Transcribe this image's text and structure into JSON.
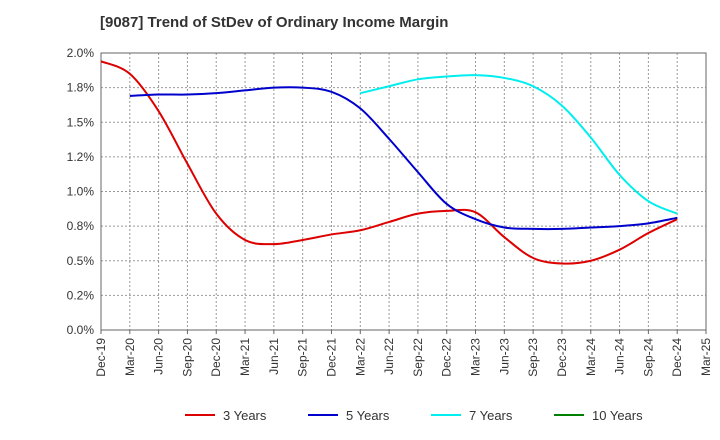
{
  "chart_data": {
    "type": "line",
    "title": "[9087]  Trend of StDev of Ordinary Income Margin",
    "xlabel": "",
    "ylabel": "",
    "ylim": [
      0.0,
      2.0
    ],
    "y_ticks": [
      "0.0%",
      "0.2%",
      "0.5%",
      "0.8%",
      "1.0%",
      "1.2%",
      "1.5%",
      "1.8%",
      "2.0%"
    ],
    "categories": [
      "Dec-19",
      "Mar-20",
      "Jun-20",
      "Sep-20",
      "Dec-20",
      "Mar-21",
      "Jun-21",
      "Sep-21",
      "Dec-21",
      "Mar-22",
      "Jun-22",
      "Sep-22",
      "Dec-22",
      "Mar-23",
      "Jun-23",
      "Sep-23",
      "Dec-23",
      "Mar-24",
      "Jun-24",
      "Sep-24",
      "Dec-24",
      "Mar-25"
    ],
    "grid": true,
    "legend_position": "bottom",
    "series": [
      {
        "name": "3 Years",
        "color": "#dd0000",
        "values": [
          1.94,
          1.85,
          1.58,
          1.2,
          0.84,
          0.65,
          0.62,
          0.65,
          0.69,
          0.72,
          0.78,
          0.84,
          0.86,
          0.85,
          0.67,
          0.52,
          0.48,
          0.5,
          0.58,
          0.7,
          0.8,
          null
        ]
      },
      {
        "name": "5 Years",
        "color": "#0000cc",
        "values": [
          null,
          1.69,
          1.7,
          1.7,
          1.71,
          1.73,
          1.75,
          1.75,
          1.72,
          1.6,
          1.38,
          1.14,
          0.91,
          0.8,
          0.74,
          0.73,
          0.73,
          0.74,
          0.75,
          0.77,
          0.81,
          null
        ]
      },
      {
        "name": "7 Years",
        "color": "#00eeee",
        "values": [
          null,
          null,
          null,
          null,
          null,
          null,
          null,
          null,
          null,
          1.71,
          1.76,
          1.81,
          1.83,
          1.84,
          1.82,
          1.76,
          1.62,
          1.39,
          1.12,
          0.93,
          0.84,
          null
        ]
      },
      {
        "name": "10 Years",
        "color": "#008000",
        "values": [
          null,
          null,
          null,
          null,
          null,
          null,
          null,
          null,
          null,
          null,
          null,
          null,
          null,
          null,
          null,
          null,
          null,
          null,
          null,
          null,
          null,
          null
        ]
      }
    ]
  }
}
